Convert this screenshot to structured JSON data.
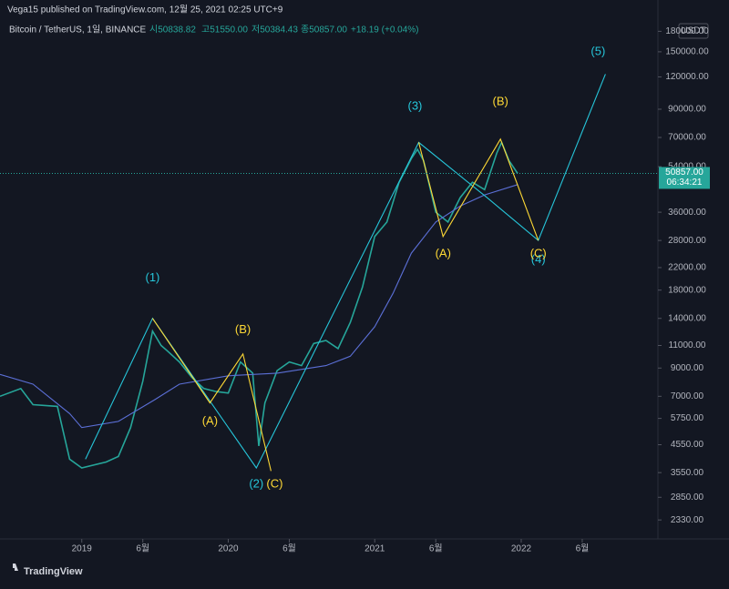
{
  "header": {
    "publisher": "Vega15 published on TradingView.com, 12월 25, 2021 02:25 UTC+9",
    "symbol": "Bitcoin / TetherUS, 1일, BINANCE",
    "open": "시50838.82",
    "high": "고51550.00",
    "low": "저50384.43",
    "close": "종50857.00",
    "change": "+18.19 (+0.04%)"
  },
  "footer": {
    "brand": "TradingView"
  },
  "chart_data": {
    "type": "line",
    "log_scale": true,
    "currency": "USDT",
    "last_price": 50857,
    "last_price_label": "50857.00",
    "countdown": "06:34:21",
    "xlim": [
      -6.7,
      47.2
    ],
    "ylim": [
      2000,
      199000
    ],
    "xticks": [
      {
        "value": 0,
        "label": "2019"
      },
      {
        "value": 5,
        "label": "6월"
      },
      {
        "value": 12,
        "label": "2020"
      },
      {
        "value": 17,
        "label": "6월"
      },
      {
        "value": 24,
        "label": "2021"
      },
      {
        "value": 29,
        "label": "6월"
      },
      {
        "value": 36,
        "label": "2022"
      },
      {
        "value": 41,
        "label": "6월"
      }
    ],
    "yticks": [
      {
        "value": 2330,
        "label": "2330.00"
      },
      {
        "value": 2850,
        "label": "2850.00"
      },
      {
        "value": 3550,
        "label": "3550.00"
      },
      {
        "value": 4550,
        "label": "4550.00"
      },
      {
        "value": 5750,
        "label": "5750.00"
      },
      {
        "value": 7000,
        "label": "7000.00"
      },
      {
        "value": 9000,
        "label": "9000.00"
      },
      {
        "value": 11000,
        "label": "11000.00"
      },
      {
        "value": 14000,
        "label": "14000.00"
      },
      {
        "value": 18000,
        "label": "18000.00"
      },
      {
        "value": 22000,
        "label": "22000.00"
      },
      {
        "value": 28000,
        "label": "28000.00"
      },
      {
        "value": 36000,
        "label": "36000.00"
      },
      {
        "value": 54000,
        "label": "54000.00"
      },
      {
        "value": 70000,
        "label": "70000.00"
      },
      {
        "value": 90000,
        "label": "90000.00"
      },
      {
        "value": 120000,
        "label": "120000.00"
      },
      {
        "value": 150000,
        "label": "150000.00"
      },
      {
        "value": 180000,
        "label": "180000.00"
      }
    ],
    "series": [
      {
        "color": "#26a69a",
        "x": [
          -6.7,
          -5,
          -4,
          -2,
          -1,
          0,
          2,
          3,
          4,
          5,
          5.8,
          6.5,
          7,
          8,
          9,
          10,
          11,
          12,
          13,
          14,
          14.5,
          15,
          16,
          17,
          18,
          19,
          20,
          21,
          22,
          23,
          24,
          25,
          26,
          27,
          27.5,
          28,
          29,
          30,
          31,
          32,
          33,
          34,
          34.4,
          35,
          35.7
        ],
        "values": [
          7000,
          7500,
          6500,
          6400,
          4000,
          3700,
          3900,
          4100,
          5300,
          8000,
          12500,
          11000,
          10500,
          9500,
          8300,
          7500,
          7300,
          7200,
          9500,
          8600,
          4500,
          6600,
          8800,
          9500,
          9200,
          11200,
          11500,
          10700,
          13500,
          18500,
          29000,
          33000,
          47000,
          58000,
          63000,
          57000,
          36000,
          33000,
          41000,
          47000,
          44000,
          61000,
          67000,
          57000,
          50857
        ]
      },
      {
        "color": "#5b6fd6",
        "x": [
          -6.7,
          -4,
          -1,
          0,
          3,
          6,
          8,
          12,
          16,
          20,
          22,
          24,
          25.5,
          27,
          29,
          31,
          33,
          35.7
        ],
        "values": [
          8500,
          7800,
          6000,
          5300,
          5600,
          6800,
          7800,
          8400,
          8600,
          9200,
          10000,
          13000,
          17500,
          25000,
          33000,
          38000,
          42000,
          46000
        ]
      },
      {
        "color": "#26c6da",
        "x": [
          0.3,
          5.8,
          14.3,
          27.6,
          33.2,
          37.4,
          42.9
        ],
        "values": [
          4000,
          14000,
          3700,
          67000,
          41000,
          28000,
          123000
        ]
      },
      {
        "color": "#fdd835",
        "x": [
          5.8,
          10.5,
          13.2,
          15.5
        ],
        "values": [
          14000,
          6600,
          10200,
          3600
        ]
      },
      {
        "color": "#fdd835",
        "x": [
          27.6,
          29.6,
          34.3,
          37.4
        ],
        "values": [
          67000,
          29000,
          69000,
          28000
        ]
      }
    ],
    "annotations": [
      {
        "label": "(1)",
        "x": 5.8,
        "y": 20000,
        "color": "#26c6da"
      },
      {
        "label": "(2)",
        "x": 14.3,
        "y": 3200,
        "color": "#26c6da"
      },
      {
        "label": "(3)",
        "x": 27.3,
        "y": 92000,
        "color": "#26c6da"
      },
      {
        "label": "(4)",
        "x": 37.4,
        "y": 23500,
        "color": "#26c6da"
      },
      {
        "label": "(5)",
        "x": 42.3,
        "y": 150000,
        "color": "#26c6da"
      },
      {
        "label": "(A)",
        "x": 10.5,
        "y": 5600,
        "color": "#fdd835"
      },
      {
        "label": "(B)",
        "x": 13.2,
        "y": 12600,
        "color": "#fdd835"
      },
      {
        "label": "(C)",
        "x": 15.8,
        "y": 3200,
        "color": "#fdd835"
      },
      {
        "label": "(A)",
        "x": 29.6,
        "y": 24800,
        "color": "#fdd835"
      },
      {
        "label": "(B)",
        "x": 34.3,
        "y": 96000,
        "color": "#fdd835"
      },
      {
        "label": "(C)",
        "x": 37.4,
        "y": 24800,
        "color": "#fdd835"
      }
    ]
  }
}
